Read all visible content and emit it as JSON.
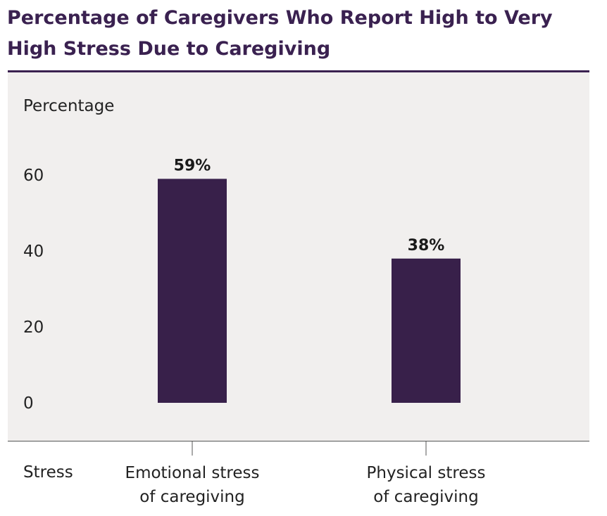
{
  "chart_data": {
    "type": "bar",
    "title": "Percentage of Caregivers Who Report High to Very High Stress Due to Caregiving",
    "ylabel": "Percentage",
    "xlabel": "Stress",
    "categories": [
      "Emotional stress of caregiving",
      "Physical stress of caregiving"
    ],
    "category_lines": [
      [
        "Emotional stress",
        "of caregiving"
      ],
      [
        "Physical stress",
        "of caregiving"
      ]
    ],
    "values": [
      59,
      38
    ],
    "data_labels": [
      "59%",
      "38%"
    ],
    "yticks": [
      0,
      20,
      40,
      60
    ],
    "ylim": [
      0,
      60
    ],
    "grid": false,
    "bar_color": "#38204a",
    "title_color": "#3a2150",
    "background_color": "#f1efee"
  }
}
